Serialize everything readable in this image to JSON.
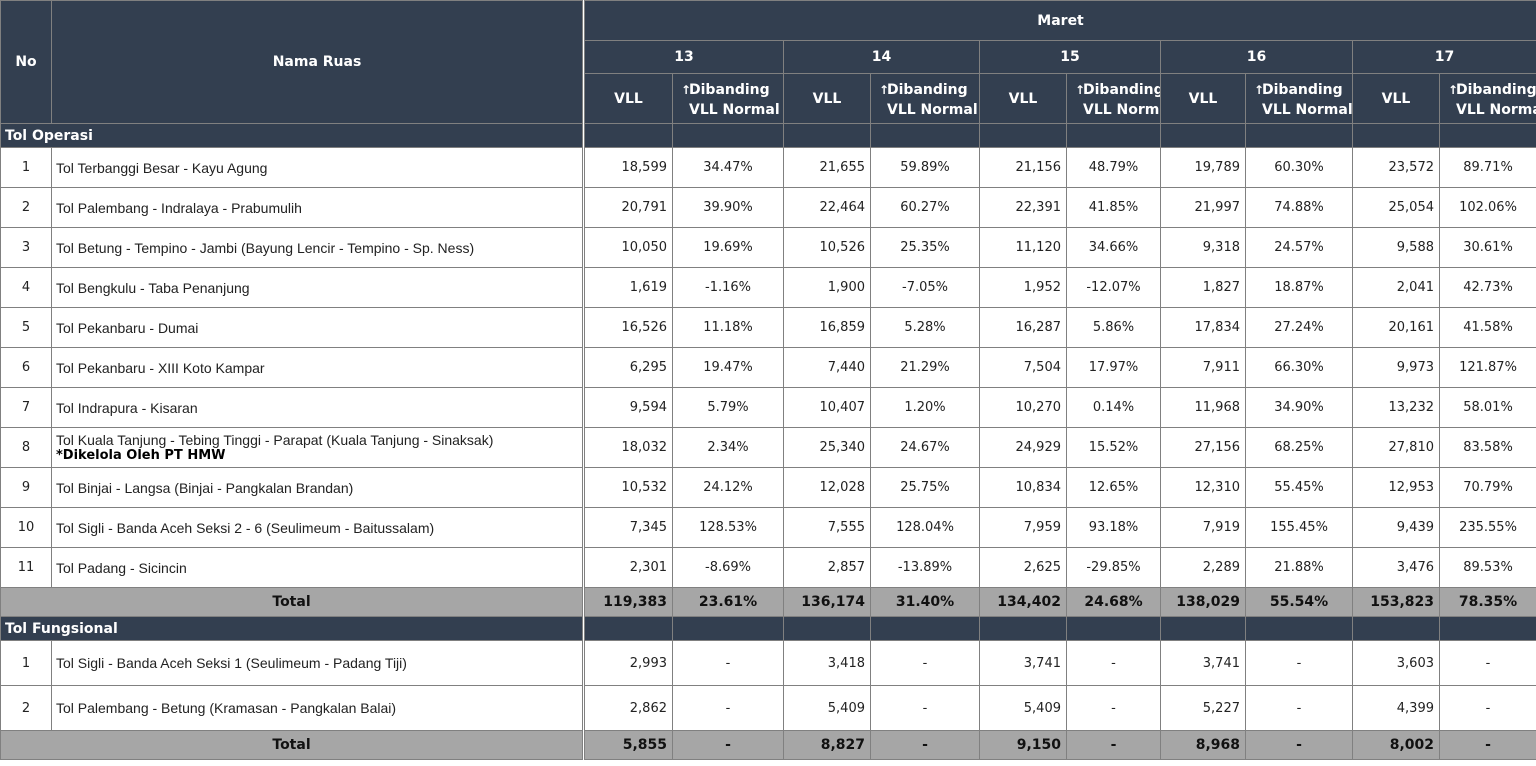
{
  "header": {
    "no": "No",
    "nama_ruas": "Nama Ruas",
    "month": "Maret",
    "days": [
      "13",
      "14",
      "15",
      "16",
      "17"
    ],
    "vll": "VLL",
    "dibanding_1": "Dibanding",
    "dibanding_2": "VLL Normal",
    "arrow": "↑"
  },
  "sections": [
    {
      "label": "Tol Operasi",
      "rows": [
        {
          "no": "1",
          "name": "Tol Terbanggi Besar - Kayu Agung",
          "note": "",
          "vals": [
            [
              "18,599",
              "34.47%"
            ],
            [
              "21,655",
              "59.89%"
            ],
            [
              "21,156",
              "48.79%"
            ],
            [
              "19,789",
              "60.30%"
            ],
            [
              "23,572",
              "89.71%"
            ]
          ]
        },
        {
          "no": "2",
          "name": "Tol Palembang - Indralaya - Prabumulih",
          "note": "",
          "vals": [
            [
              "20,791",
              "39.90%"
            ],
            [
              "22,464",
              "60.27%"
            ],
            [
              "22,391",
              "41.85%"
            ],
            [
              "21,997",
              "74.88%"
            ],
            [
              "25,054",
              "102.06%"
            ]
          ]
        },
        {
          "no": "3",
          "name": "Tol Betung - Tempino - Jambi (Bayung Lencir - Tempino - Sp. Ness)",
          "note": "",
          "vals": [
            [
              "10,050",
              "19.69%"
            ],
            [
              "10,526",
              "25.35%"
            ],
            [
              "11,120",
              "34.66%"
            ],
            [
              "9,318",
              "24.57%"
            ],
            [
              "9,588",
              "30.61%"
            ]
          ]
        },
        {
          "no": "4",
          "name": "Tol Bengkulu - Taba Penanjung",
          "note": "",
          "vals": [
            [
              "1,619",
              "-1.16%"
            ],
            [
              "1,900",
              "-7.05%"
            ],
            [
              "1,952",
              "-12.07%"
            ],
            [
              "1,827",
              "18.87%"
            ],
            [
              "2,041",
              "42.73%"
            ]
          ]
        },
        {
          "no": "5",
          "name": "Tol Pekanbaru - Dumai",
          "note": "",
          "vals": [
            [
              "16,526",
              "11.18%"
            ],
            [
              "16,859",
              "5.28%"
            ],
            [
              "16,287",
              "5.86%"
            ],
            [
              "17,834",
              "27.24%"
            ],
            [
              "20,161",
              "41.58%"
            ]
          ]
        },
        {
          "no": "6",
          "name": "Tol Pekanbaru  - XIII Koto Kampar",
          "note": "",
          "vals": [
            [
              "6,295",
              "19.47%"
            ],
            [
              "7,440",
              "21.29%"
            ],
            [
              "7,504",
              "17.97%"
            ],
            [
              "7,911",
              "66.30%"
            ],
            [
              "9,973",
              "121.87%"
            ]
          ]
        },
        {
          "no": "7",
          "name": "Tol Indrapura - Kisaran",
          "note": "",
          "vals": [
            [
              "9,594",
              "5.79%"
            ],
            [
              "10,407",
              "1.20%"
            ],
            [
              "10,270",
              "0.14%"
            ],
            [
              "11,968",
              "34.90%"
            ],
            [
              "13,232",
              "58.01%"
            ]
          ]
        },
        {
          "no": "8",
          "name": "Tol Kuala Tanjung - Tebing Tinggi - Parapat (Kuala Tanjung - Sinaksak)",
          "note": "*Dikelola Oleh PT HMW",
          "vals": [
            [
              "18,032",
              "2.34%"
            ],
            [
              "25,340",
              "24.67%"
            ],
            [
              "24,929",
              "15.52%"
            ],
            [
              "27,156",
              "68.25%"
            ],
            [
              "27,810",
              "83.58%"
            ]
          ]
        },
        {
          "no": "9",
          "name": "Tol Binjai - Langsa (Binjai - Pangkalan Brandan)",
          "note": "",
          "vals": [
            [
              "10,532",
              "24.12%"
            ],
            [
              "12,028",
              "25.75%"
            ],
            [
              "10,834",
              "12.65%"
            ],
            [
              "12,310",
              "55.45%"
            ],
            [
              "12,953",
              "70.79%"
            ]
          ]
        },
        {
          "no": "10",
          "name": "Tol Sigli - Banda Aceh Seksi 2 - 6 (Seulimeum - Baitussalam)",
          "note": "",
          "vals": [
            [
              "7,345",
              "128.53%"
            ],
            [
              "7,555",
              "128.04%"
            ],
            [
              "7,959",
              "93.18%"
            ],
            [
              "7,919",
              "155.45%"
            ],
            [
              "9,439",
              "235.55%"
            ]
          ]
        },
        {
          "no": "11",
          "name": "Tol Padang - Sicincin",
          "note": "",
          "vals": [
            [
              "2,301",
              "-8.69%"
            ],
            [
              "2,857",
              "-13.89%"
            ],
            [
              "2,625",
              "-29.85%"
            ],
            [
              "2,289",
              "21.88%"
            ],
            [
              "3,476",
              "89.53%"
            ]
          ]
        }
      ],
      "total": {
        "label": "Total",
        "vals": [
          [
            "119,383",
            "23.61%"
          ],
          [
            "136,174",
            "31.40%"
          ],
          [
            "134,402",
            "24.68%"
          ],
          [
            "138,029",
            "55.54%"
          ],
          [
            "153,823",
            "78.35%"
          ]
        ]
      }
    },
    {
      "label": "Tol Fungsional",
      "rows": [
        {
          "no": "1",
          "name": "Tol Sigli - Banda Aceh Seksi 1 (Seulimeum - Padang Tiji)",
          "note": "",
          "vals": [
            [
              "2,993",
              "-"
            ],
            [
              "3,418",
              "-"
            ],
            [
              "3,741",
              "-"
            ],
            [
              "3,741",
              "-"
            ],
            [
              "3,603",
              "-"
            ]
          ]
        },
        {
          "no": "2",
          "name": "Tol Palembang - Betung (Kramasan - Pangkalan Balai)",
          "note": "",
          "vals": [
            [
              "2,862",
              "-"
            ],
            [
              "5,409",
              "-"
            ],
            [
              "5,409",
              "-"
            ],
            [
              "5,227",
              "-"
            ],
            [
              "4,399",
              "-"
            ]
          ]
        }
      ],
      "total": {
        "label": "Total",
        "vals": [
          [
            "5,855",
            "-"
          ],
          [
            "8,827",
            "-"
          ],
          [
            "9,150",
            "-"
          ],
          [
            "8,968",
            "-"
          ],
          [
            "8,002",
            "-"
          ]
        ]
      }
    }
  ]
}
